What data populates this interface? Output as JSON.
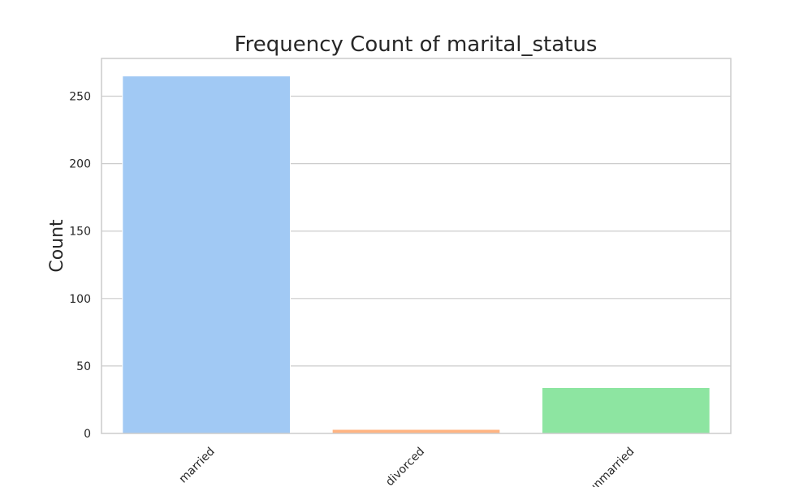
{
  "chart_data": {
    "type": "bar",
    "title": "Frequency Count of marital_status",
    "xlabel": "",
    "ylabel": "Count",
    "categories": [
      "married",
      "divorced",
      "unmarried"
    ],
    "values": [
      265,
      3,
      34
    ],
    "colors": [
      "#a1c9f4",
      "#ffb482",
      "#8de5a1"
    ],
    "ylim": [
      0,
      278
    ],
    "yticks": [
      0,
      50,
      100,
      150,
      200,
      250
    ],
    "xtick_rotation_deg": 45,
    "grid": "y",
    "legend": "none"
  }
}
